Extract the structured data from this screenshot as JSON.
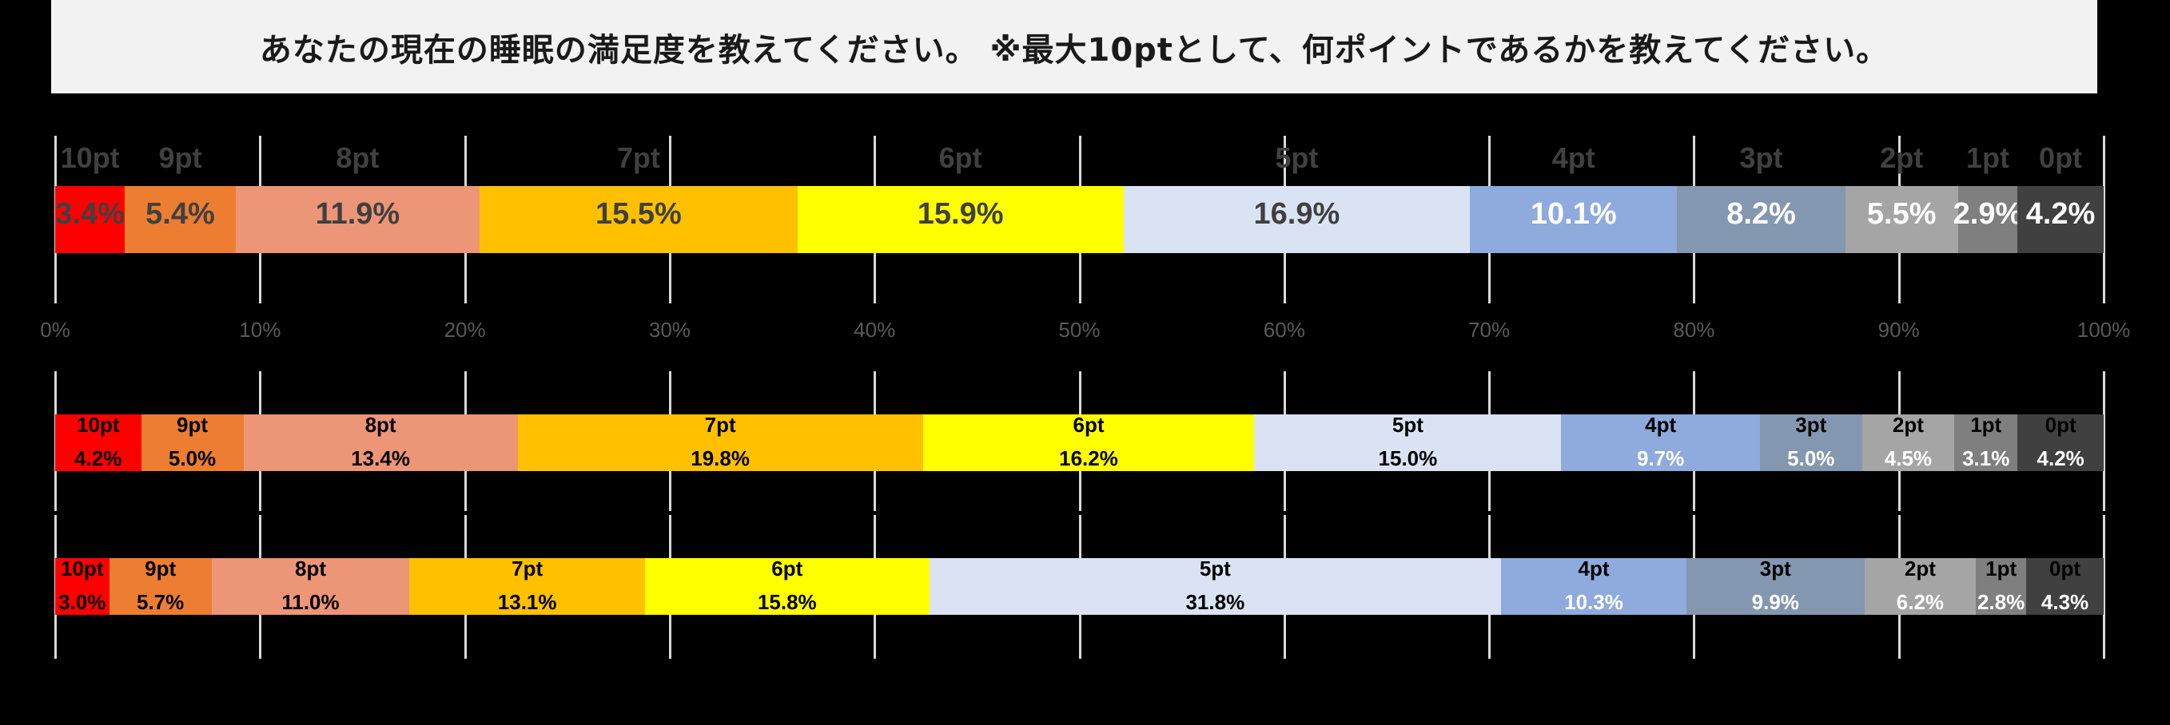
{
  "title": "あなたの現在の睡眠の満足度を教えてください。 ※最大10ptとして、何ポイントであるかを教えてください。",
  "axis": {
    "ticks": [
      "0%",
      "10%",
      "20%",
      "30%",
      "40%",
      "50%",
      "60%",
      "70%",
      "80%",
      "90%",
      "100%"
    ]
  },
  "colors": {
    "10pt": "#ff0000",
    "9pt": "#ed7d31",
    "8pt": "#ed9577",
    "7pt": "#ffc000",
    "6pt": "#ffff00",
    "5pt": "#dae3f3",
    "4pt": "#8faadc",
    "3pt": "#8497b0",
    "2pt": "#a5a5a5",
    "1pt": "#7f7f7f",
    "0pt": "#404040"
  },
  "rows": [
    {
      "segments": [
        {
          "cat": "10pt",
          "val": "3.4%"
        },
        {
          "cat": "9pt",
          "val": "5.4%"
        },
        {
          "cat": "8pt",
          "val": "11.9%"
        },
        {
          "cat": "7pt",
          "val": "15.5%"
        },
        {
          "cat": "6pt",
          "val": "15.9%"
        },
        {
          "cat": "5pt",
          "val": "16.9%"
        },
        {
          "cat": "4pt",
          "val": "10.1%"
        },
        {
          "cat": "3pt",
          "val": "8.2%"
        },
        {
          "cat": "2pt",
          "val": "5.5%"
        },
        {
          "cat": "1pt",
          "val": "2.9%"
        },
        {
          "cat": "0pt",
          "val": "4.2%"
        }
      ]
    },
    {
      "segments": [
        {
          "cat": "10pt",
          "val": "4.2%"
        },
        {
          "cat": "9pt",
          "val": "5.0%"
        },
        {
          "cat": "8pt",
          "val": "13.4%"
        },
        {
          "cat": "7pt",
          "val": "19.8%"
        },
        {
          "cat": "6pt",
          "val": "16.2%"
        },
        {
          "cat": "5pt",
          "val": "15.0%"
        },
        {
          "cat": "4pt",
          "val": "9.7%"
        },
        {
          "cat": "3pt",
          "val": "5.0%"
        },
        {
          "cat": "2pt",
          "val": "4.5%"
        },
        {
          "cat": "1pt",
          "val": "3.1%"
        },
        {
          "cat": "0pt",
          "val": "4.2%"
        }
      ]
    },
    {
      "segments": [
        {
          "cat": "10pt",
          "val": "3.0%"
        },
        {
          "cat": "9pt",
          "val": "5.7%"
        },
        {
          "cat": "8pt",
          "val": "11.0%"
        },
        {
          "cat": "7pt",
          "val": "13.1%"
        },
        {
          "cat": "6pt",
          "val": "15.8%"
        },
        {
          "cat": "5pt",
          "val": "31.8%"
        },
        {
          "cat": "4pt",
          "val": "10.3%"
        },
        {
          "cat": "3pt",
          "val": "9.9%"
        },
        {
          "cat": "2pt",
          "val": "6.2%"
        },
        {
          "cat": "1pt",
          "val": "2.8%"
        },
        {
          "cat": "0pt",
          "val": "4.3%"
        }
      ]
    }
  ],
  "chart_data": {
    "type": "bar",
    "subtype": "100% stacked horizontal",
    "title": "あなたの現在の睡眠の満足度を教えてください。 ※最大10ptとして、何ポイントであるかを教えてください。",
    "categories": [
      "10pt",
      "9pt",
      "8pt",
      "7pt",
      "6pt",
      "5pt",
      "4pt",
      "3pt",
      "2pt",
      "1pt",
      "0pt"
    ],
    "series": [
      {
        "name": "row1",
        "values": [
          3.4,
          5.4,
          11.9,
          15.5,
          15.9,
          16.9,
          10.1,
          8.2,
          5.5,
          2.9,
          4.2
        ]
      },
      {
        "name": "row2",
        "values": [
          4.2,
          5.0,
          13.4,
          19.8,
          16.2,
          15.0,
          9.7,
          5.0,
          4.5,
          3.1,
          4.2
        ]
      },
      {
        "name": "row3",
        "values": [
          3.0,
          5.7,
          11.0,
          13.1,
          15.8,
          31.8,
          10.3,
          9.9,
          6.2,
          2.8,
          4.3
        ]
      }
    ],
    "xlabel": "",
    "ylabel": "",
    "xlim": [
      0,
      100
    ],
    "xticks": [
      "0%",
      "10%",
      "20%",
      "30%",
      "40%",
      "50%",
      "60%",
      "70%",
      "80%",
      "90%",
      "100%"
    ],
    "grid": true,
    "legend": "none (category labels on segments)"
  }
}
